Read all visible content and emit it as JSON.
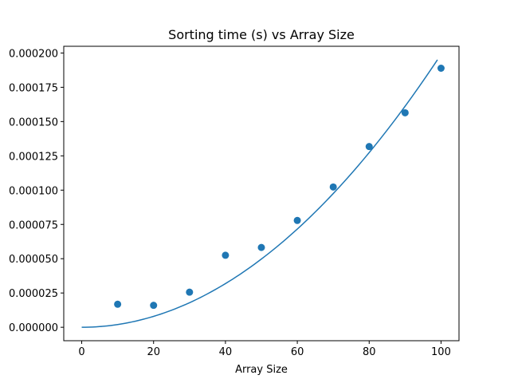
{
  "chart_data": {
    "type": "scatter",
    "title": "Sorting time (s) vs Array Size",
    "xlabel": "Array Size",
    "ylabel": "",
    "xlim": [
      -5,
      105
    ],
    "ylim": [
      -9.8e-06,
      0.0002049
    ],
    "xticks": [
      0,
      20,
      40,
      60,
      80,
      100
    ],
    "xtick_labels": [
      "0",
      "20",
      "40",
      "60",
      "80",
      "100"
    ],
    "yticks": [
      0,
      2.5e-05,
      5e-05,
      7.5e-05,
      0.0001,
      0.000125,
      0.00015,
      0.000175,
      0.0002
    ],
    "ytick_labels": [
      "0.000000",
      "0.000025",
      "0.000050",
      "0.000075",
      "0.000100",
      "0.000125",
      "0.000150",
      "0.000175",
      "0.000200"
    ],
    "grid": false,
    "series": [
      {
        "type": "scatter",
        "color": "#1f77b4",
        "x": [
          10,
          20,
          30,
          40,
          50,
          60,
          70,
          80,
          90,
          100
        ],
        "y": [
          1.68e-05,
          1.6e-05,
          2.56e-05,
          5.25e-05,
          5.82e-05,
          7.79e-05,
          0.0001023,
          0.0001318,
          0.0001564,
          0.0001889
        ]
      },
      {
        "type": "line",
        "color": "#1f77b4",
        "curve": "quadratic fit",
        "x_range": [
          0,
          99
        ],
        "coefficient": 1.99e-08
      }
    ]
  }
}
